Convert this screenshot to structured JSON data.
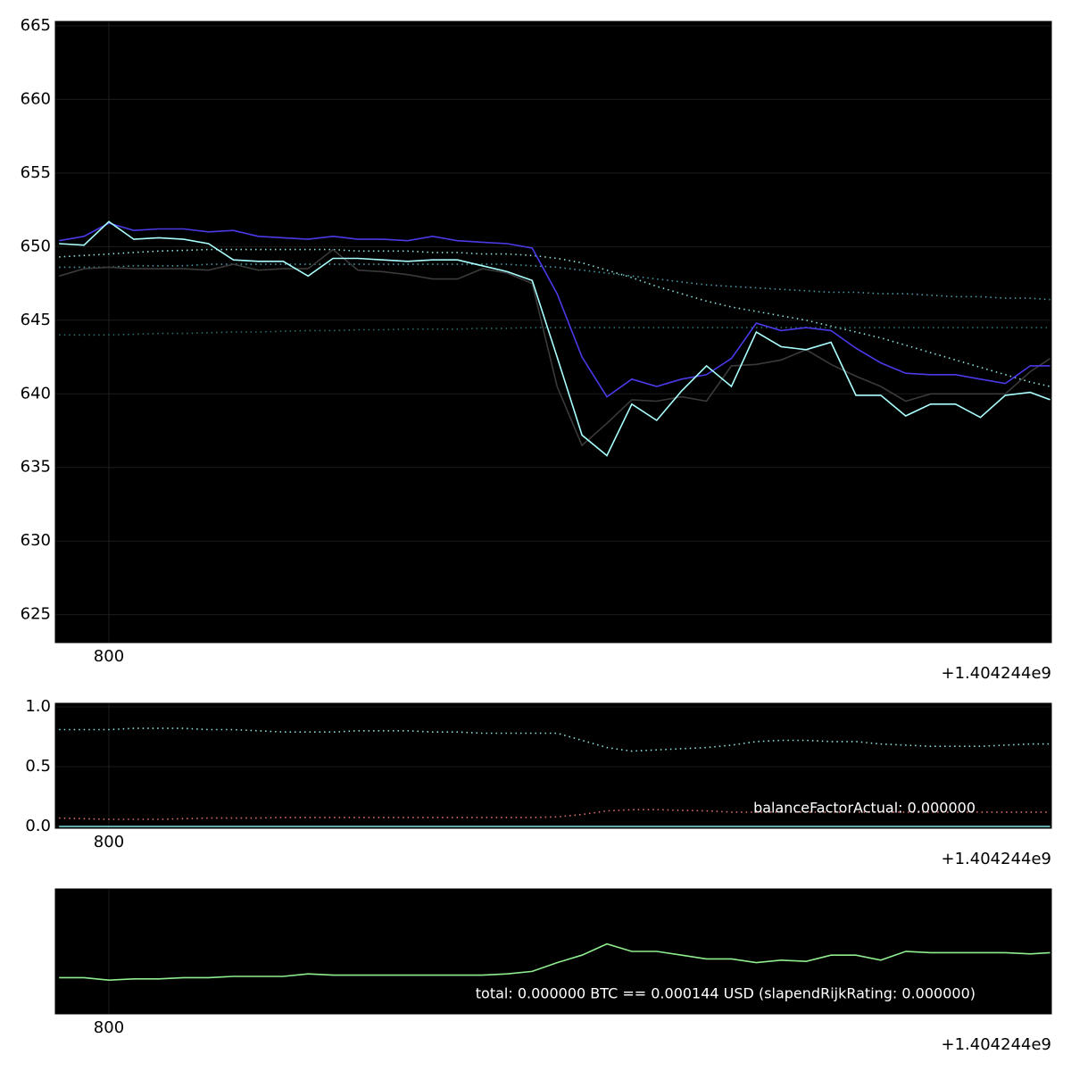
{
  "chart_data": [
    {
      "type": "line",
      "grid": true,
      "x": [
        780,
        790,
        800,
        810,
        820,
        830,
        840,
        850,
        860,
        870,
        880,
        890,
        900,
        910,
        920,
        930,
        940,
        950,
        960,
        970,
        980,
        990,
        1000,
        1010,
        1020,
        1030,
        1040,
        1050,
        1060,
        1070,
        1080,
        1090,
        1100,
        1110,
        1120,
        1130,
        1140,
        1150,
        1160,
        1170,
        1178
      ],
      "xlim": [
        778.5,
        1178.5
      ],
      "xticks": [
        800
      ],
      "x_offset_label": "+1.404244e9",
      "ylim": [
        623.1,
        665.3
      ],
      "yticks": [
        625,
        630,
        635,
        640,
        645,
        650,
        655,
        660,
        665
      ],
      "series": [
        {
          "color": "#8fe0e0",
          "style": "dotted",
          "values": [
            649.3,
            649.4,
            649.5,
            649.6,
            649.7,
            649.75,
            649.8,
            649.8,
            649.8,
            649.8,
            649.8,
            649.8,
            649.7,
            649.7,
            649.7,
            649.6,
            649.6,
            649.5,
            649.5,
            649.4,
            649.2,
            648.9,
            648.4,
            647.9,
            647.3,
            646.8,
            646.3,
            645.9,
            645.6,
            645.3,
            645.0,
            644.6,
            644.2,
            643.8,
            643.3,
            642.8,
            642.3,
            641.8,
            641.3,
            640.8,
            640.5
          ]
        },
        {
          "color": "#4a9aa8",
          "style": "dotted",
          "values": [
            648.6,
            648.6,
            648.6,
            648.7,
            648.7,
            648.7,
            648.8,
            648.8,
            648.8,
            648.8,
            648.8,
            648.8,
            648.8,
            648.8,
            648.8,
            648.8,
            648.8,
            648.8,
            648.8,
            648.7,
            648.6,
            648.4,
            648.2,
            648.0,
            647.8,
            647.6,
            647.4,
            647.3,
            647.2,
            647.1,
            647.0,
            646.9,
            646.9,
            646.8,
            646.8,
            646.7,
            646.6,
            646.6,
            646.5,
            646.5,
            646.4
          ]
        },
        {
          "color": "#2e6e6e",
          "style": "dotted",
          "values": [
            644.0,
            644.0,
            644.0,
            644.05,
            644.1,
            644.1,
            644.15,
            644.2,
            644.2,
            644.25,
            644.3,
            644.3,
            644.35,
            644.35,
            644.4,
            644.4,
            644.4,
            644.45,
            644.45,
            644.5,
            644.5,
            644.5,
            644.5,
            644.5,
            644.5,
            644.5,
            644.5,
            644.5,
            644.5,
            644.5,
            644.5,
            644.5,
            644.5,
            644.5,
            644.5,
            644.5,
            644.5,
            644.5,
            644.5,
            644.5,
            644.5
          ]
        },
        {
          "color": "#3a3a3a",
          "style": "solid",
          "values": [
            648.0,
            648.5,
            648.6,
            648.5,
            648.5,
            648.5,
            648.4,
            648.8,
            648.4,
            648.5,
            648.5,
            649.8,
            648.4,
            648.3,
            648.1,
            647.8,
            647.8,
            648.5,
            648.2,
            647.5,
            640.5,
            636.5,
            638.0,
            639.6,
            639.5,
            639.8,
            639.5,
            641.9,
            642.0,
            642.3,
            643.0,
            642.0,
            641.2,
            640.5,
            639.5,
            640.0,
            640.0,
            640.0,
            640.0,
            641.5,
            642.4
          ]
        },
        {
          "color": "#4a3ae8",
          "style": "solid",
          "values": [
            650.4,
            650.7,
            651.6,
            651.1,
            651.2,
            651.2,
            651.0,
            651.1,
            650.7,
            650.6,
            650.5,
            650.7,
            650.5,
            650.5,
            650.4,
            650.7,
            650.4,
            650.3,
            650.2,
            649.9,
            646.8,
            642.5,
            639.8,
            641.0,
            640.5,
            641.0,
            641.3,
            642.4,
            644.8,
            644.3,
            644.5,
            644.3,
            643.1,
            642.1,
            641.4,
            641.3,
            641.3,
            641.0,
            640.7,
            641.9,
            641.9
          ]
        },
        {
          "color": "#aaffff",
          "style": "solid",
          "values": [
            650.2,
            650.1,
            651.7,
            650.5,
            650.6,
            650.5,
            650.2,
            649.1,
            649.0,
            649.0,
            648.0,
            649.2,
            649.2,
            649.1,
            649.0,
            649.1,
            649.1,
            648.7,
            648.3,
            647.7,
            642.5,
            637.2,
            635.8,
            639.3,
            638.2,
            640.2,
            641.9,
            640.5,
            644.2,
            643.2,
            643.0,
            643.5,
            639.9,
            639.9,
            638.5,
            639.3,
            639.3,
            638.4,
            639.9,
            640.1,
            639.6
          ]
        }
      ]
    },
    {
      "type": "line",
      "grid": true,
      "x": [
        780,
        790,
        800,
        810,
        820,
        830,
        840,
        850,
        860,
        870,
        880,
        890,
        900,
        910,
        920,
        930,
        940,
        950,
        960,
        970,
        980,
        990,
        1000,
        1010,
        1020,
        1030,
        1040,
        1050,
        1060,
        1070,
        1080,
        1090,
        1100,
        1110,
        1120,
        1130,
        1140,
        1150,
        1160,
        1170,
        1178
      ],
      "xlim": [
        778.5,
        1178.5
      ],
      "xticks": [
        800
      ],
      "x_offset_label": "+1.404244e9",
      "ylim": [
        -0.015,
        1.03
      ],
      "yticks": [
        {
          "value": 0,
          "label": "0.0"
        },
        0.5,
        {
          "value": 1,
          "label": "1.0"
        }
      ],
      "annotation": "balanceFactorActual: 0.000000",
      "series": [
        {
          "color": "#8fe0e0",
          "style": "dotted",
          "values": [
            0.81,
            0.81,
            0.81,
            0.82,
            0.82,
            0.82,
            0.81,
            0.81,
            0.8,
            0.79,
            0.79,
            0.79,
            0.8,
            0.8,
            0.8,
            0.79,
            0.79,
            0.78,
            0.78,
            0.78,
            0.78,
            0.72,
            0.66,
            0.63,
            0.64,
            0.65,
            0.66,
            0.68,
            0.71,
            0.72,
            0.72,
            0.71,
            0.71,
            0.69,
            0.68,
            0.67,
            0.67,
            0.67,
            0.68,
            0.69,
            0.69
          ]
        },
        {
          "color": "#e07070",
          "style": "dotted",
          "values": [
            0.07,
            0.065,
            0.06,
            0.06,
            0.06,
            0.065,
            0.07,
            0.07,
            0.07,
            0.075,
            0.075,
            0.075,
            0.075,
            0.075,
            0.075,
            0.075,
            0.075,
            0.075,
            0.075,
            0.075,
            0.08,
            0.1,
            0.13,
            0.14,
            0.14,
            0.135,
            0.13,
            0.12,
            0.12,
            0.12,
            0.12,
            0.12,
            0.12,
            0.12,
            0.12,
            0.12,
            0.12,
            0.12,
            0.12,
            0.12,
            0.12
          ]
        },
        {
          "color": "#80e0e0",
          "style": "solid",
          "values": [
            0,
            0,
            0,
            0,
            0,
            0,
            0,
            0,
            0,
            0,
            0,
            0,
            0,
            0,
            0,
            0,
            0,
            0,
            0,
            0,
            0,
            0,
            0,
            0,
            0,
            0,
            0,
            0,
            0,
            0,
            0,
            0,
            0,
            0,
            0,
            0,
            0,
            0,
            0,
            0,
            0
          ]
        }
      ]
    },
    {
      "type": "line",
      "grid": true,
      "x": [
        780,
        790,
        800,
        810,
        820,
        830,
        840,
        850,
        860,
        870,
        880,
        890,
        900,
        910,
        920,
        930,
        940,
        950,
        960,
        970,
        980,
        990,
        1000,
        1010,
        1020,
        1030,
        1040,
        1050,
        1060,
        1070,
        1080,
        1090,
        1100,
        1110,
        1120,
        1130,
        1140,
        1150,
        1160,
        1170,
        1178
      ],
      "xlim": [
        778.5,
        1178.5
      ],
      "xticks": [
        800
      ],
      "x_offset_label": "+1.404244e9",
      "ylim": [
        0,
        1
      ],
      "annotation": "total: 0.000000 BTC == 0.000144 USD (slapendRijkRating: 0.000000)",
      "series": [
        {
          "color": "#90ee90",
          "style": "solid",
          "values": [
            0.29,
            0.29,
            0.27,
            0.28,
            0.28,
            0.29,
            0.29,
            0.3,
            0.3,
            0.3,
            0.32,
            0.31,
            0.31,
            0.31,
            0.31,
            0.31,
            0.31,
            0.31,
            0.32,
            0.34,
            0.41,
            0.47,
            0.56,
            0.5,
            0.5,
            0.47,
            0.44,
            0.44,
            0.41,
            0.43,
            0.42,
            0.47,
            0.47,
            0.43,
            0.5,
            0.49,
            0.49,
            0.49,
            0.49,
            0.48,
            0.49
          ]
        }
      ]
    }
  ]
}
